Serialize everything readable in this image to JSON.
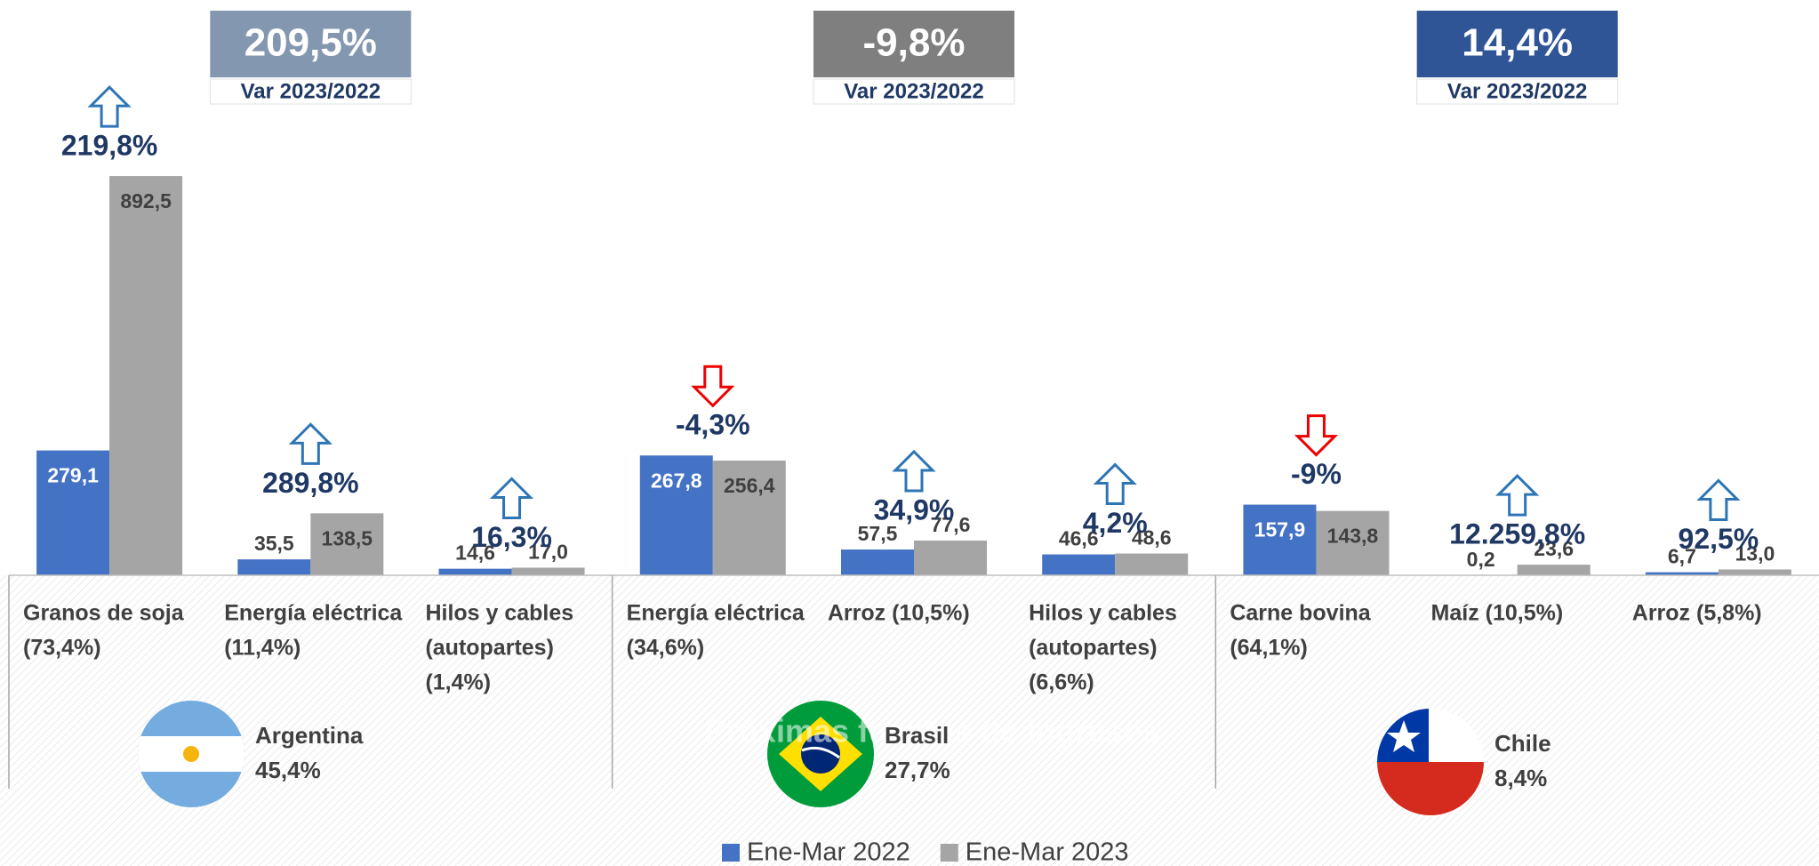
{
  "chart_data": {
    "type": "bar",
    "categories": [
      [
        "Granos de soja",
        "(73,4%)"
      ],
      [
        "Energía eléctrica",
        "(11,4%)"
      ],
      [
        "Hilos y cables",
        "(autopartes)",
        "(1,4%)"
      ],
      [
        "Energía eléctrica",
        "(34,6%)"
      ],
      [
        "Arroz (10,5%)"
      ],
      [
        "Hilos y cables",
        "(autopartes)",
        "(6,6%)"
      ],
      [
        "Carne bovina",
        "(64,1%)"
      ],
      [
        "Maíz (10,5%)"
      ],
      [
        "Arroz (5,8%)"
      ]
    ],
    "series": [
      {
        "name": "Ene-Mar 2022",
        "color": "#4472c4",
        "values": [
          279.1,
          35.5,
          14.6,
          267.8,
          57.5,
          46.6,
          157.9,
          0.2,
          6.7
        ],
        "value_labels": [
          "279,1",
          "35,5",
          "14,6",
          "267,8",
          "57,5",
          "46,6",
          "157,9",
          "0,2",
          "6,7"
        ]
      },
      {
        "name": "Ene-Mar 2023",
        "color": "#a5a5a5",
        "values": [
          892.5,
          138.5,
          17.0,
          256.4,
          77.6,
          48.6,
          143.8,
          23.6,
          13.0
        ],
        "value_labels": [
          "892,5",
          "138,5",
          "17,0",
          "256,4",
          "77,6",
          "48,6",
          "143,8",
          "23,6",
          "13,0"
        ]
      }
    ],
    "changes": [
      {
        "value": 219.8,
        "label": "219,8%"
      },
      {
        "value": 289.8,
        "label": "289,8%"
      },
      {
        "value": 16.3,
        "label": "16,3%"
      },
      {
        "value": -4.3,
        "label": "-4,3%"
      },
      {
        "value": 34.9,
        "label": "34,9%"
      },
      {
        "value": 4.2,
        "label": "4,2%"
      },
      {
        "value": -9,
        "label": "-9%"
      },
      {
        "value": 12259.8,
        "label": "12.259,8%"
      },
      {
        "value": 92.5,
        "label": "92,5%"
      }
    ],
    "groups": [
      {
        "name": "Argentina",
        "share": "45,4%",
        "variation": "209,5%",
        "variation_label": "Var 2023/2022",
        "box_color": "#8497b0"
      },
      {
        "name": "Brasil",
        "share": "27,7%",
        "variation": "-9,8%",
        "variation_label": "Var 2023/2022",
        "box_color": "#7f7f7f"
      },
      {
        "name": "Chile",
        "share": "8,4%",
        "variation": "14,4%",
        "variation_label": "Var 2023/2022",
        "box_color": "#2f5597"
      }
    ],
    "watermark": "Próximas fuentes de ingresos",
    "ylim": [
      0,
      1000
    ]
  }
}
